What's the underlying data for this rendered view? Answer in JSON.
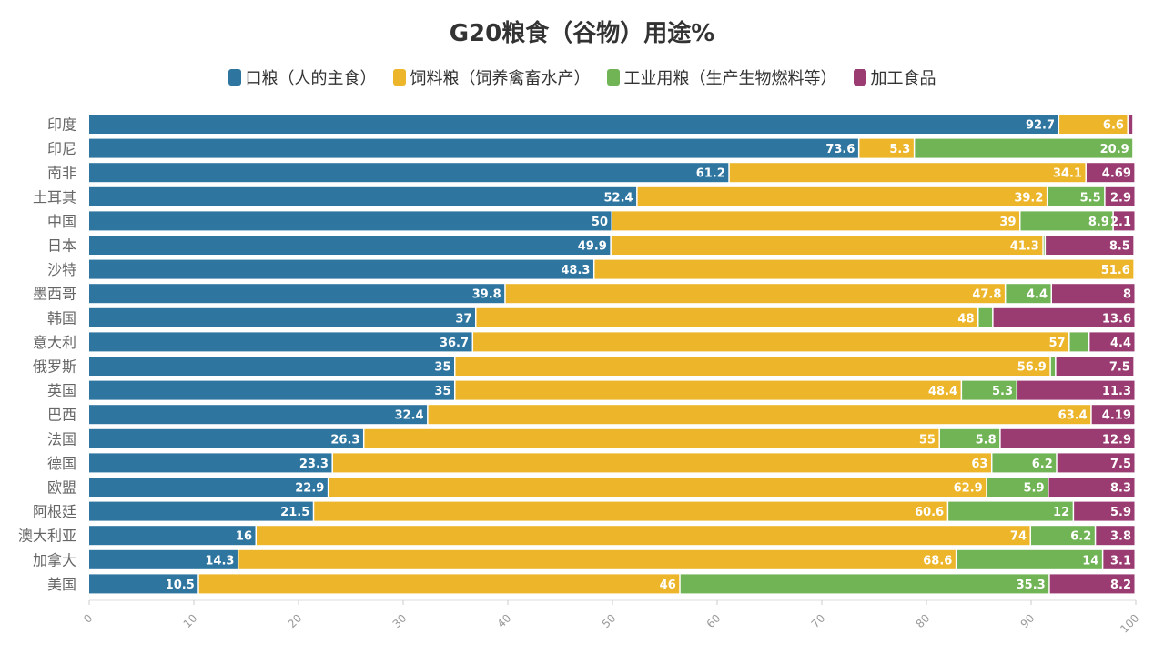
{
  "title": "G20粮食（谷物）用途%",
  "colors": {
    "food": "#2e75a0",
    "feed": "#edb62a",
    "industrial": "#71b456",
    "processed": "#9a3b71"
  },
  "chart_data": {
    "type": "bar",
    "orientation": "horizontal",
    "stacked": true,
    "title": "G20粮食（谷物）用途%",
    "categories": [
      "印度",
      "印尼",
      "南非",
      "土耳其",
      "中国",
      "日本",
      "沙特",
      "墨西哥",
      "韩国",
      "意大利",
      "俄罗斯",
      "英国",
      "巴西",
      "法国",
      "德国",
      "欧盟",
      "阿根廷",
      "澳大利亚",
      "加拿大",
      "美国"
    ],
    "series": [
      {
        "name": "口粮（人的主食）",
        "color": "#2e75a0",
        "values": [
          92.7,
          73.6,
          61.2,
          52.4,
          50,
          49.9,
          48.3,
          39.8,
          37,
          36.7,
          35,
          35,
          32.4,
          26.3,
          23.3,
          22.9,
          21.5,
          16,
          14.3,
          10.5
        ],
        "labels": [
          "92.7",
          "73.6",
          "61.2",
          "52.4",
          "50",
          "49.9",
          "48.3",
          "39.8",
          "37",
          "36.7",
          "35",
          "35",
          "32.4",
          "26.3",
          "23.3",
          "22.9",
          "21.5",
          "16",
          "14.3",
          "10.5"
        ]
      },
      {
        "name": "饲料粮（饲养禽畜水产）",
        "color": "#edb62a",
        "values": [
          6.6,
          5.3,
          34.1,
          39.2,
          39,
          41.3,
          51.6,
          47.8,
          48,
          57,
          56.9,
          48.4,
          63.4,
          55,
          63,
          62.9,
          60.6,
          74,
          68.6,
          46
        ],
        "labels": [
          "6.6",
          "5.3",
          "34.1",
          "39.2",
          "39",
          "41.3",
          "51.6",
          "47.8",
          "48",
          "57",
          "56.9",
          "48.4",
          "63.4",
          "55",
          "63",
          "62.9",
          "60.6",
          "74",
          "68.6",
          "46"
        ]
      },
      {
        "name": "工业用粮（生产生物燃料等）",
        "color": "#71b456",
        "values": [
          0,
          20.9,
          0,
          5.5,
          8.9,
          0.2,
          0,
          4.4,
          1.4,
          1.9,
          0.5,
          5.3,
          0,
          5.8,
          6.2,
          5.9,
          12,
          6.2,
          14,
          35.3
        ],
        "labels": [
          "",
          "20.9",
          "",
          "5.5",
          "8.9",
          "",
          "",
          "4.4",
          "",
          "",
          "",
          "5.3",
          "",
          "5.8",
          "6.2",
          "5.9",
          "12",
          "6.2",
          "14",
          "35.3"
        ]
      },
      {
        "name": "加工食品",
        "color": "#9a3b71",
        "values": [
          0.5,
          0,
          4.69,
          2.9,
          2.1,
          8.5,
          0,
          8,
          13.6,
          4.4,
          7.5,
          11.3,
          4.19,
          12.9,
          7.5,
          8.3,
          5.9,
          3.8,
          3.1,
          8.2
        ],
        "labels": [
          "",
          "",
          "4.69",
          "2.9",
          "2.1",
          "8.5",
          "",
          "8",
          "13.6",
          "4.4",
          "7.5",
          "11.3",
          "4.19",
          "12.9",
          "7.5",
          "8.3",
          "5.9",
          "3.8",
          "3.1",
          "8.2"
        ]
      }
    ],
    "xlim": [
      0,
      100
    ],
    "xticks": [
      0,
      10,
      20,
      30,
      40,
      50,
      60,
      70,
      80,
      90,
      100
    ],
    "grid": false,
    "legend_position": "top-center"
  }
}
